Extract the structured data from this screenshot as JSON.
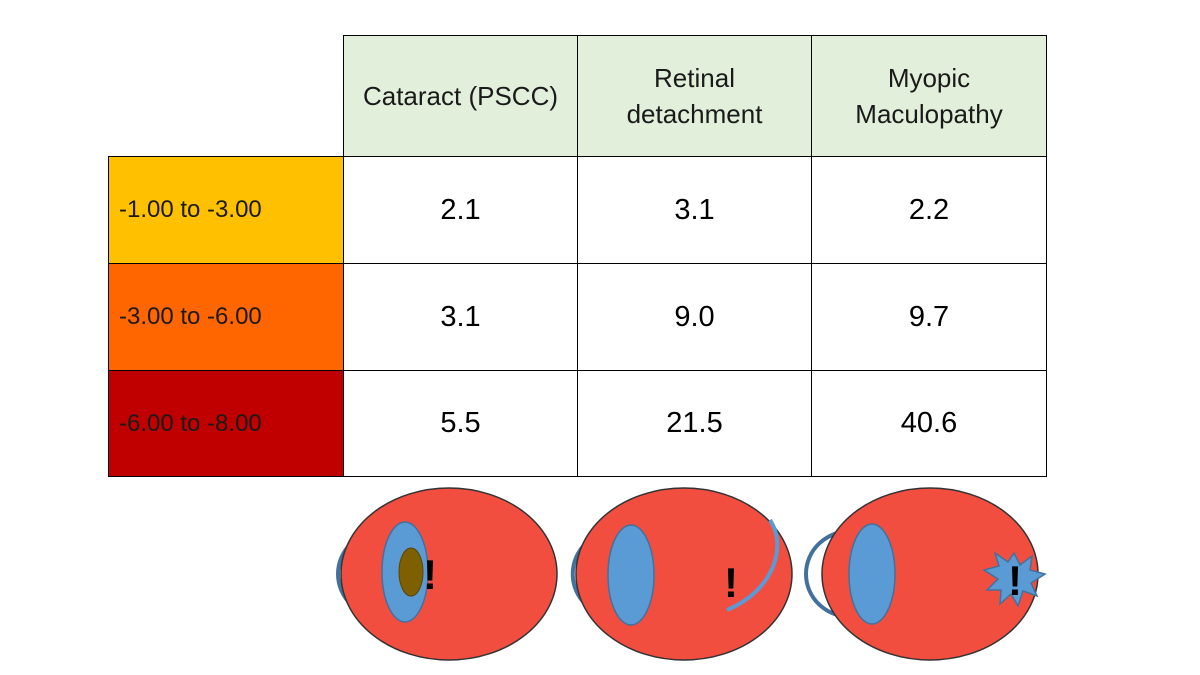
{
  "table": {
    "columns": [
      "Cataract (PSCC)",
      "Retinal\ndetachment",
      "Myopic\nMaculopathy"
    ],
    "rows": [
      {
        "label": "-1.00 to -3.00",
        "color": "#ffc000",
        "values": [
          "2.1",
          "3.1",
          "2.2"
        ]
      },
      {
        "label": "-3.00 to -6.00",
        "color": "#ff6600",
        "values": [
          "3.1",
          "9.0",
          "9.7"
        ]
      },
      {
        "label": "-6.00 to -8.00",
        "color": "#c00000",
        "values": [
          "5.5",
          "21.5",
          "40.6"
        ]
      }
    ]
  },
  "eyes": [
    {
      "icon": "eye-cataract-icon",
      "mark": "!"
    },
    {
      "icon": "eye-retinal-detachment-icon",
      "mark": "!"
    },
    {
      "icon": "eye-myopic-maculopathy-icon",
      "mark": "!"
    }
  ],
  "colors": {
    "header_bg": "#e2efda",
    "eyeball": "#f24e40",
    "lens": "#5b9bd5",
    "outline": "#41719c",
    "cataract": "#7f6000"
  }
}
